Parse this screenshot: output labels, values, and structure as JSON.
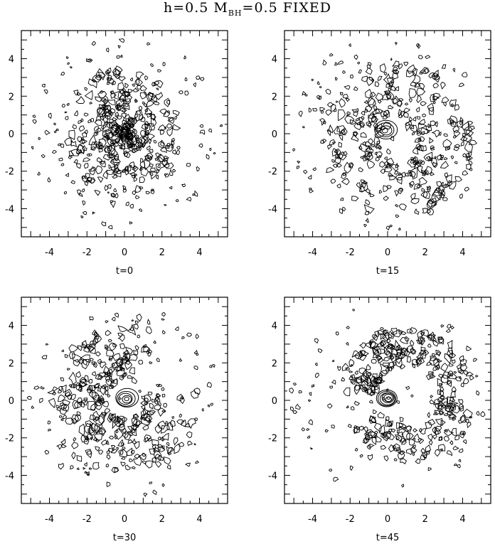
{
  "figure": {
    "title_main": "h=0.5  M",
    "title_sub": "BH",
    "title_tail": "=0.5  FIXED"
  },
  "chart_data": [
    {
      "type": "contour",
      "title": "t=0",
      "xlim": [
        -5.5,
        5.5
      ],
      "ylim": [
        -5.5,
        5.5
      ],
      "xticks": [
        -4,
        -2,
        0,
        2,
        4
      ],
      "yticks": [
        -4,
        -2,
        0,
        2,
        4
      ],
      "grid": false,
      "features": [
        {
          "kind": "noise-contours",
          "center": [
            0,
            0
          ],
          "radius": 5.2,
          "density": 0.6
        },
        {
          "kind": "dense-clump",
          "center": [
            0,
            0
          ],
          "radius": 3.0,
          "density": 1.0
        }
      ]
    },
    {
      "type": "contour",
      "title": "t=15",
      "xlim": [
        -5.5,
        5.5
      ],
      "ylim": [
        -5.5,
        5.5
      ],
      "xticks": [
        -4,
        -2,
        0,
        2,
        4
      ],
      "yticks": [
        -4,
        -2,
        0,
        2,
        4
      ],
      "grid": false,
      "features": [
        {
          "kind": "noise-contours",
          "center": [
            0,
            0
          ],
          "radius": 5.2,
          "density": 0.55
        },
        {
          "kind": "ring",
          "center": [
            0.5,
            -0.5
          ],
          "inner_radius": 1.0,
          "outer_radius": 4.2,
          "density": 0.9
        },
        {
          "kind": "nested-contours",
          "center": [
            -0.1,
            0.2
          ],
          "levels": 4,
          "max_radius": 0.55
        }
      ]
    },
    {
      "type": "contour",
      "title": "t=30",
      "xlim": [
        -5.5,
        5.5
      ],
      "ylim": [
        -5.5,
        5.5
      ],
      "xticks": [
        -4,
        -2,
        0,
        2,
        4
      ],
      "yticks": [
        -4,
        -2,
        0,
        2,
        4
      ],
      "grid": false,
      "features": [
        {
          "kind": "noise-contours",
          "center": [
            0,
            0
          ],
          "radius": 5.2,
          "density": 0.5
        },
        {
          "kind": "arc",
          "center": [
            0,
            0
          ],
          "inner_radius": 1.0,
          "outer_radius": 4.0,
          "density": 0.9
        },
        {
          "kind": "nested-contours",
          "center": [
            0.1,
            0.1
          ],
          "levels": 5,
          "max_radius": 0.55
        }
      ]
    },
    {
      "type": "contour",
      "title": "t=45",
      "xlim": [
        -5.5,
        5.5
      ],
      "ylim": [
        -5.5,
        5.5
      ],
      "xticks": [
        -4,
        -2,
        0,
        2,
        4
      ],
      "yticks": [
        -4,
        -2,
        0,
        2,
        4
      ],
      "grid": false,
      "features": [
        {
          "kind": "noise-contours",
          "center": [
            0,
            0
          ],
          "radius": 5.2,
          "density": 0.45
        },
        {
          "kind": "c-shaped-ring",
          "center": [
            1.0,
            0.3
          ],
          "inner_radius": 1.6,
          "outer_radius": 3.6,
          "density": 0.95
        },
        {
          "kind": "nested-contours",
          "center": [
            0.0,
            0.1
          ],
          "levels": 7,
          "max_radius": 0.5
        }
      ]
    }
  ]
}
